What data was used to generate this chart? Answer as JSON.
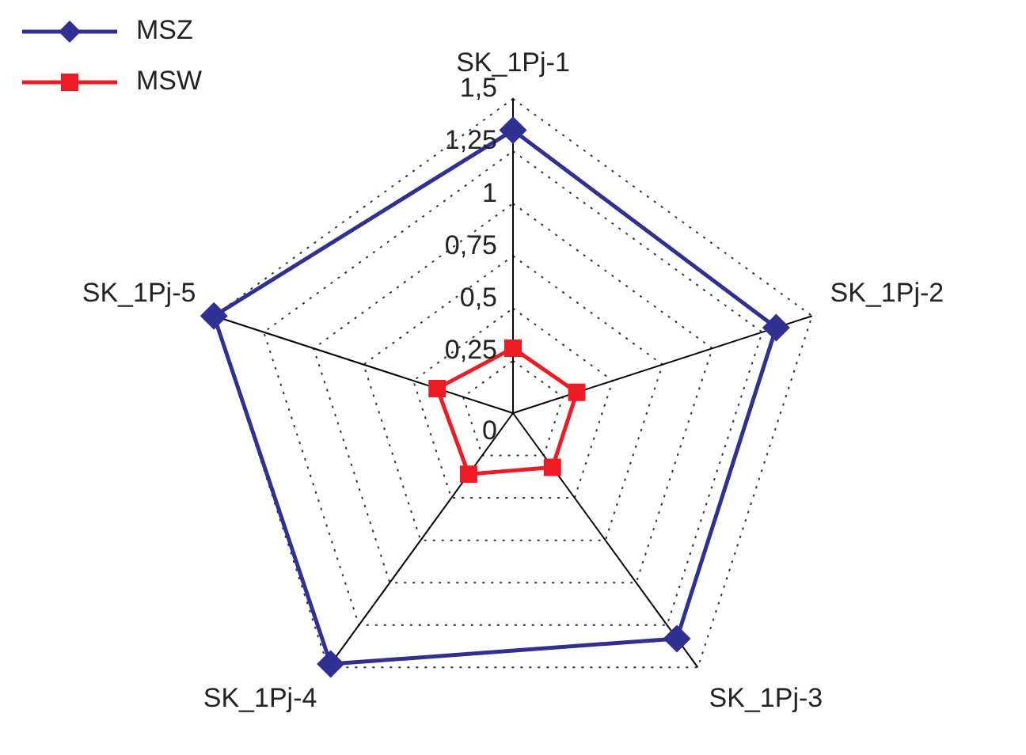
{
  "chart_data": {
    "type": "radar",
    "categories": [
      "SK_1Pj-1",
      "SK_1Pj-2",
      "SK_1Pj-3",
      "SK_1Pj-4",
      "SK_1Pj-5"
    ],
    "series": [
      {
        "name": "MSZ",
        "color": "#2e3192",
        "marker": "diamond",
        "values": [
          1.35,
          1.32,
          1.33,
          1.48,
          1.5
        ]
      },
      {
        "name": "MSW",
        "color": "#ed1c24",
        "marker": "square",
        "values": [
          0.31,
          0.32,
          0.32,
          0.36,
          0.38
        ]
      }
    ],
    "ylim": [
      0,
      1.5
    ],
    "yticks": [
      {
        "value": 0,
        "label": "0"
      },
      {
        "value": 0.25,
        "label": "0,25"
      },
      {
        "value": 0.5,
        "label": "0,5"
      },
      {
        "value": 0.75,
        "label": "0,75"
      },
      {
        "value": 1,
        "label": "1"
      },
      {
        "value": 1.25,
        "label": "1,25"
      },
      {
        "value": 1.5,
        "label": "1,5"
      }
    ],
    "grid": true,
    "legend": "top left",
    "line_style": "solid"
  }
}
